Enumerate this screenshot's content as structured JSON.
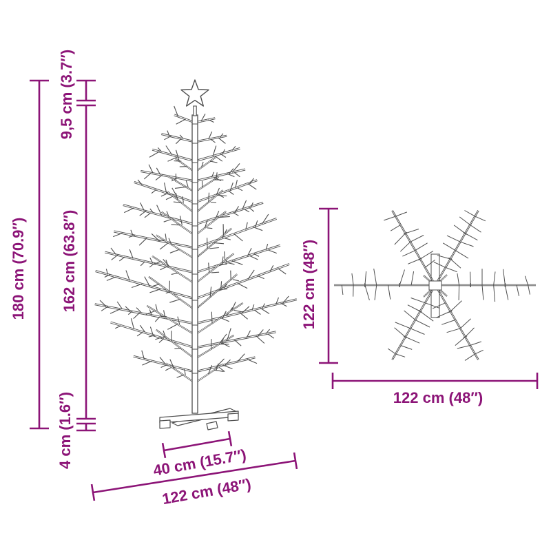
{
  "diagram_type": "product-dimension-diagram",
  "subject": "twig christmas tree with star topper and cross base",
  "colors": {
    "dimension": "#8C1477",
    "outline": "#4D4D4D",
    "background": "#FFFFFF"
  },
  "side_view": {
    "total_height": "180 cm (70.9″)",
    "star_section": "9,5 cm (3.7″)",
    "trunk_section": "162 cm (63.8″)",
    "base_height": "4 cm (1.6″)",
    "base_width": "40 cm (15.7″)",
    "overall_width": "122 cm (48″)"
  },
  "top_view": {
    "height": "122 cm (48″)",
    "width": "122 cm (48″)"
  }
}
